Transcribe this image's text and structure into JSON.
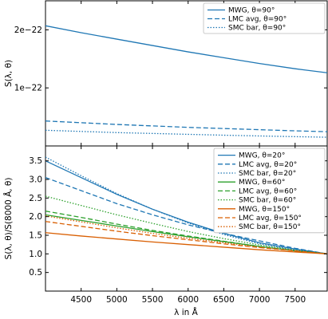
{
  "chart_data": [
    {
      "type": "line",
      "title": "",
      "xlabel": "",
      "ylabel": "S(λ, θ)",
      "xlim": [
        4000,
        7950
      ],
      "ylim": [
        0,
        2.5e-22
      ],
      "grid": false,
      "legend_position": "top-right",
      "y_ticks": [
        {
          "value": 1e-22,
          "label": "1e−22"
        },
        {
          "value": 2e-22,
          "label": "2e−22"
        }
      ],
      "x": [
        4000,
        4500,
        5000,
        5500,
        6000,
        6500,
        7000,
        7500,
        7950
      ],
      "series": [
        {
          "name": "MWG, θ=90°",
          "color": "#1f77b4",
          "style": "solid",
          "values": [
            2.07e-22,
            1.95e-22,
            1.84e-22,
            1.73e-22,
            1.62e-22,
            1.52e-22,
            1.42e-22,
            1.33e-22,
            1.26e-22
          ]
        },
        {
          "name": "LMC avg, θ=90°",
          "color": "#1f77b4",
          "style": "dashed",
          "values": [
            4.3e-23,
            4e-23,
            3.7e-23,
            3.45e-23,
            3.2e-23,
            3e-23,
            2.8e-23,
            2.6e-23,
            2.45e-23
          ]
        },
        {
          "name": "SMC bar, θ=90°",
          "color": "#1f77b4",
          "style": "dotted",
          "values": [
            2.7e-23,
            2.5e-23,
            2.3e-23,
            2.15e-23,
            2e-23,
            1.85e-23,
            1.72e-23,
            1.6e-23,
            1.5e-23
          ]
        }
      ]
    },
    {
      "type": "line",
      "title": "",
      "xlabel": "λ in Å",
      "ylabel": "S(λ, θ)/S(8000 Å, θ)",
      "xlim": [
        4000,
        7950
      ],
      "ylim": [
        0,
        3.9
      ],
      "grid": false,
      "legend_position": "top-right",
      "x_ticks": [
        4500,
        5000,
        5500,
        6000,
        6500,
        7000,
        7500
      ],
      "y_ticks": [
        0.5,
        1.0,
        1.5,
        2.0,
        2.5,
        3.0,
        3.5
      ],
      "x": [
        4000,
        4500,
        5000,
        5500,
        6000,
        6500,
        7000,
        7500,
        7950
      ],
      "series": [
        {
          "name": "MWG, θ=20°",
          "color": "#1f77b4",
          "style": "solid",
          "values": [
            3.5,
            3.05,
            2.6,
            2.2,
            1.85,
            1.55,
            1.3,
            1.13,
            1.0
          ]
        },
        {
          "name": "LMC avg, θ=20°",
          "color": "#1f77b4",
          "style": "dashed",
          "values": [
            3.05,
            2.7,
            2.35,
            2.05,
            1.78,
            1.55,
            1.35,
            1.15,
            1.0
          ]
        },
        {
          "name": "SMC bar, θ=20°",
          "color": "#1f77b4",
          "style": "dotted",
          "values": [
            3.6,
            3.1,
            2.62,
            2.2,
            1.83,
            1.52,
            1.27,
            1.1,
            1.0
          ]
        },
        {
          "name": "MWG, θ=60°",
          "color": "#2ca02c",
          "style": "solid",
          "values": [
            2.05,
            1.9,
            1.75,
            1.6,
            1.46,
            1.33,
            1.2,
            1.08,
            1.0
          ]
        },
        {
          "name": "LMC avg, θ=60°",
          "color": "#2ca02c",
          "style": "dashed",
          "values": [
            2.15,
            1.98,
            1.8,
            1.63,
            1.48,
            1.34,
            1.2,
            1.08,
            1.0
          ]
        },
        {
          "name": "SMC bar, θ=60°",
          "color": "#2ca02c",
          "style": "dotted",
          "values": [
            2.55,
            2.3,
            2.05,
            1.82,
            1.6,
            1.41,
            1.24,
            1.1,
            1.0
          ]
        },
        {
          "name": "MWG, θ=150°",
          "color": "#d95f02",
          "style": "solid",
          "values": [
            1.57,
            1.48,
            1.4,
            1.32,
            1.25,
            1.18,
            1.11,
            1.05,
            1.0
          ]
        },
        {
          "name": "LMC avg, θ=150°",
          "color": "#d95f02",
          "style": "dashed",
          "values": [
            1.87,
            1.74,
            1.61,
            1.49,
            1.38,
            1.27,
            1.17,
            1.08,
            1.0
          ]
        },
        {
          "name": "SMC bar, θ=150°",
          "color": "#d95f02",
          "style": "dotted",
          "values": [
            2.02,
            1.86,
            1.7,
            1.55,
            1.42,
            1.3,
            1.18,
            1.08,
            1.0
          ]
        }
      ]
    }
  ]
}
